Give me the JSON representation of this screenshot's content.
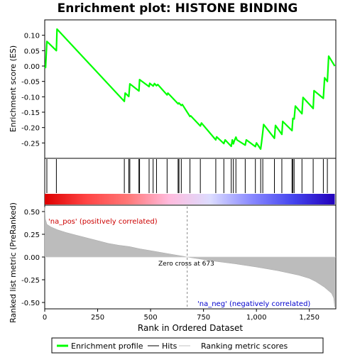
{
  "chart_data": {
    "type": "line",
    "title": "Enrichment plot: HISTONE BINDING",
    "top_panel": {
      "ylabel": "Enrichment score (ES)",
      "ylim": [
        -0.3,
        0.15
      ],
      "yticks": [
        0.1,
        0.05,
        0.0,
        -0.05,
        -0.1,
        -0.15,
        -0.2,
        -0.25
      ],
      "ytick_labels": [
        "0.10",
        "0.05",
        "0.00",
        "-0.05",
        "-0.10",
        "-0.15",
        "-0.20",
        "-0.25"
      ],
      "series": [
        {
          "name": "Enrichment profile",
          "color": "#00ff00",
          "x": [
            0,
            4,
            10,
            55,
            58,
            376,
            380,
            397,
            402,
            445,
            448,
            493,
            496,
            512,
            518,
            528,
            534,
            578,
            582,
            630,
            634,
            645,
            650,
            686,
            690,
            735,
            740,
            808,
            812,
            846,
            852,
            881,
            886,
            891,
            896,
            903,
            908,
            947,
            952,
            995,
            1000,
            1020,
            1024,
            1030,
            1034,
            1085,
            1090,
            1120,
            1124,
            1168,
            1172,
            1178,
            1184,
            1215,
            1220,
            1268,
            1272,
            1316,
            1322,
            1335,
            1341,
            1370
          ],
          "y": [
            -0.005,
            -0.005,
            0.08,
            0.05,
            0.12,
            -0.115,
            -0.088,
            -0.099,
            -0.058,
            -0.081,
            -0.044,
            -0.067,
            -0.056,
            -0.065,
            -0.057,
            -0.064,
            -0.06,
            -0.094,
            -0.088,
            -0.123,
            -0.12,
            -0.128,
            -0.125,
            -0.164,
            -0.162,
            -0.195,
            -0.185,
            -0.24,
            -0.23,
            -0.252,
            -0.24,
            -0.261,
            -0.24,
            -0.253,
            -0.242,
            -0.231,
            -0.24,
            -0.257,
            -0.24,
            -0.262,
            -0.25,
            -0.27,
            -0.25,
            -0.215,
            -0.19,
            -0.235,
            -0.193,
            -0.222,
            -0.18,
            -0.21,
            -0.17,
            -0.172,
            -0.13,
            -0.155,
            -0.102,
            -0.138,
            -0.08,
            -0.105,
            -0.038,
            -0.05,
            0.032,
            0.0
          ]
        }
      ]
    },
    "hits": [
      10,
      55,
      376,
      397,
      402,
      445,
      448,
      493,
      512,
      528,
      578,
      630,
      634,
      645,
      686,
      735,
      808,
      846,
      881,
      891,
      903,
      947,
      995,
      1020,
      1030,
      1085,
      1120,
      1168,
      1172,
      1178,
      1215,
      1268,
      1316,
      1335
    ],
    "color_bar_stops": [
      "#dd0000",
      "#ff4444",
      "#ff7777",
      "#ffbbdd",
      "#dcdcff",
      "#8888ff",
      "#4444ee",
      "#2200bb"
    ],
    "bottom_panel": {
      "ylabel": "Ranked list metric (PreRanked)",
      "xlabel": "Rank in Ordered Dataset",
      "xlim": [
        0,
        1375
      ],
      "ylim": [
        -0.57,
        0.57
      ],
      "yticks": [
        0.5,
        0.25,
        0.0,
        -0.25,
        -0.5
      ],
      "ytick_labels": [
        "0.50",
        "0.25",
        "0.00",
        "-0.25",
        "-0.50"
      ],
      "xticks": [
        0,
        250,
        500,
        750,
        1000,
        1250
      ],
      "xtick_labels": [
        "0",
        "250",
        "500",
        "750",
        "1,000",
        "1,250"
      ],
      "metric_x": [
        0,
        3,
        10,
        30,
        60,
        100,
        150,
        200,
        250,
        300,
        350,
        400,
        450,
        500,
        550,
        600,
        650,
        673,
        700,
        800,
        900,
        1000,
        1100,
        1150,
        1200,
        1250,
        1280,
        1300,
        1320,
        1340,
        1355,
        1365,
        1370
      ],
      "metric_y": [
        0.55,
        0.42,
        0.36,
        0.33,
        0.3,
        0.27,
        0.24,
        0.21,
        0.18,
        0.15,
        0.13,
        0.115,
        0.09,
        0.07,
        0.05,
        0.03,
        0.01,
        0.0,
        -0.01,
        -0.045,
        -0.075,
        -0.11,
        -0.15,
        -0.175,
        -0.2,
        -0.235,
        -0.27,
        -0.3,
        -0.33,
        -0.37,
        -0.4,
        -0.45,
        -0.55
      ],
      "zero_cross_rank": 673,
      "zero_cross_label": "Zero cross at 673",
      "pos_label": "'na_pos' (positively correlated)",
      "neg_label": "'na_neg' (negatively correlated)"
    },
    "legend": {
      "placement": "bottom",
      "items": [
        {
          "label": "Enrichment profile",
          "color": "#00ff00"
        },
        {
          "label": "Hits",
          "color": "#000000"
        },
        {
          "label": "Ranking metric scores",
          "color": "#c0c0c0"
        }
      ]
    }
  }
}
